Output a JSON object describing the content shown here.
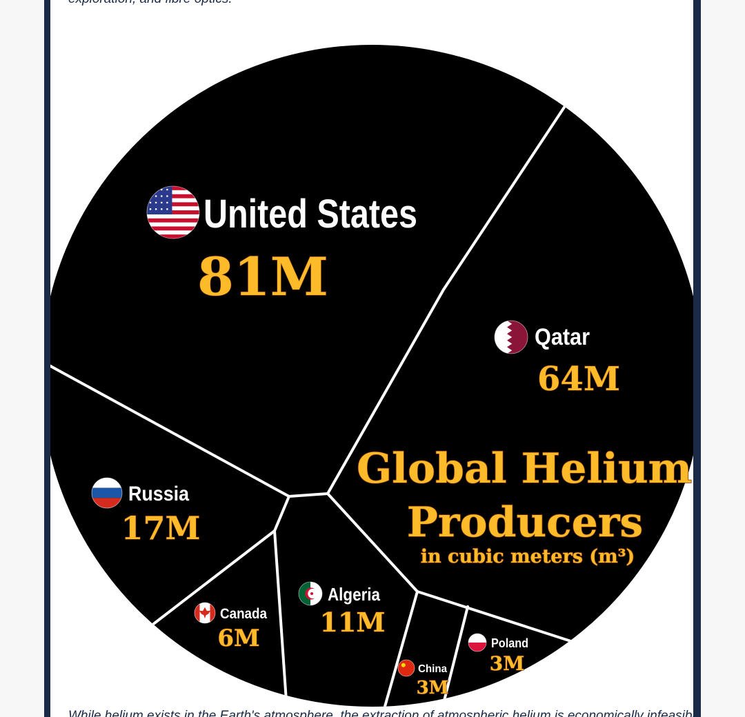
{
  "intro_text": "exploration, and fibre optics.",
  "outro_text": "While helium exists in the Earth's atmosphere, the extraction of atmospheric helium is economically infeasible.",
  "chart_data": {
    "type": "voronoi-treemap",
    "title": "Global Helium",
    "title_line2": "Producers",
    "subtitle": "in cubic meters (m³)",
    "series": [
      {
        "name": "United States",
        "value": 81,
        "label": "81M",
        "flag": "flag-us-icon"
      },
      {
        "name": "Qatar",
        "value": 64,
        "label": "64M",
        "flag": "flag-qatar-icon"
      },
      {
        "name": "Russia",
        "value": 17,
        "label": "17M",
        "flag": "flag-russia-icon"
      },
      {
        "name": "Algeria",
        "value": 11,
        "label": "11M",
        "flag": "flag-algeria-icon"
      },
      {
        "name": "Canada",
        "value": 6,
        "label": "6M",
        "flag": "flag-canada-icon"
      },
      {
        "name": "Poland",
        "value": 3,
        "label": "3M",
        "flag": "flag-poland-icon"
      },
      {
        "name": "China",
        "value": 3,
        "label": "3M",
        "flag": "flag-china-icon"
      }
    ],
    "colors": {
      "cell": "#000000",
      "border": "#ffffff",
      "value_text": "#fdbb2a",
      "country_text": "#ffffff",
      "frame": "#1b2a47"
    }
  }
}
